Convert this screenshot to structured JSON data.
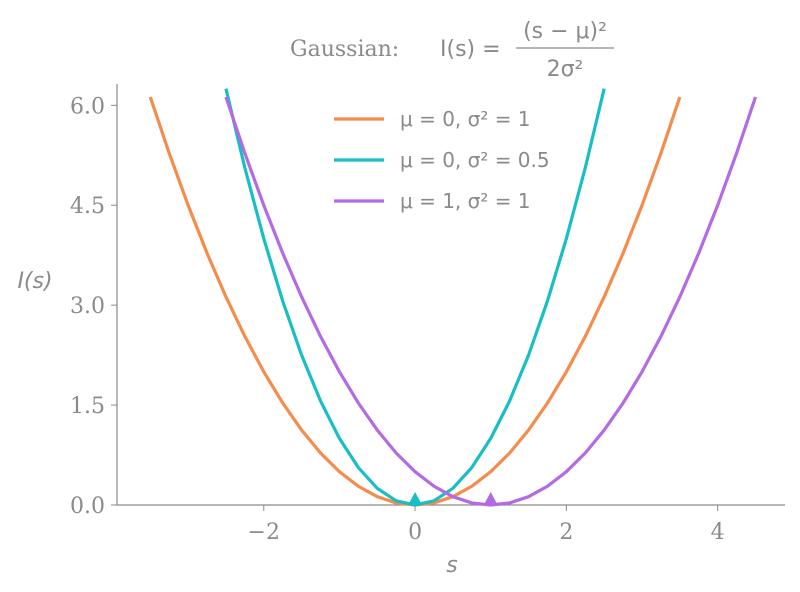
{
  "chart_data": {
    "type": "line",
    "title": "Gaussian:",
    "formula": {
      "lhs": "I(s) =",
      "numerator": "(s − μ)²",
      "denominator": "2σ²"
    },
    "xlabel": "s",
    "ylabel": "I(s)",
    "xlim": [
      -3.94,
      4.89
    ],
    "ylim": [
      0,
      6.32
    ],
    "xticks": [
      {
        "value": -2,
        "label": "−2"
      },
      0,
      2,
      4
    ],
    "yticks": [
      {
        "value": 0,
        "label": "0.0"
      },
      {
        "value": 1.5,
        "label": "1.5"
      },
      {
        "value": 3,
        "label": "3.0"
      },
      {
        "value": 4.5,
        "label": "4.5"
      },
      {
        "value": 6,
        "label": "6.0"
      }
    ],
    "legend": "upper center",
    "series": [
      {
        "name": "μ = 0,  σ² = 1",
        "color": "#f58b4c",
        "x": [
          -3.5,
          -3.25,
          -3,
          -2.75,
          -2.5,
          -2.25,
          -2,
          -1.75,
          -1.5,
          -1.25,
          -1,
          -0.75,
          -0.5,
          -0.25,
          0,
          0.25,
          0.5,
          0.75,
          1,
          1.25,
          1.5,
          1.75,
          2,
          2.25,
          2.5,
          2.75,
          3,
          3.25,
          3.5
        ],
        "values": [
          6.125,
          5.28125,
          4.5,
          3.78125,
          3.125,
          2.53125,
          2,
          1.53125,
          1.125,
          0.78125,
          0.5,
          0.28125,
          0.125,
          0.03125,
          0,
          0.03125,
          0.125,
          0.28125,
          0.5,
          0.78125,
          1.125,
          1.53125,
          2,
          2.53125,
          3.125,
          3.78125,
          4.5,
          5.28125,
          6.125
        ]
      },
      {
        "name": "μ = 0,  σ² = 0.5",
        "color": "#17bfc4",
        "x": [
          -2.5,
          -2.25,
          -2,
          -1.75,
          -1.5,
          -1.25,
          -1,
          -0.75,
          -0.5,
          -0.25,
          0,
          0.25,
          0.5,
          0.75,
          1,
          1.25,
          1.5,
          1.75,
          2,
          2.25,
          2.5
        ],
        "values": [
          6.25,
          5.0625,
          4,
          3.0625,
          2.25,
          1.5625,
          1,
          0.5625,
          0.25,
          0.0625,
          0,
          0.0625,
          0.25,
          0.5625,
          1,
          1.5625,
          2.25,
          3.0625,
          4,
          5.0625,
          6.25
        ],
        "minimum": {
          "x": 0,
          "y": 0
        }
      },
      {
        "name": "μ = 1,  σ² = 1",
        "color": "#b36ae2",
        "x": [
          -2.5,
          -2.25,
          -2,
          -1.75,
          -1.5,
          -1.25,
          -1,
          -0.75,
          -0.5,
          -0.25,
          0,
          0.25,
          0.5,
          0.75,
          1,
          1.25,
          1.5,
          1.75,
          2,
          2.25,
          2.5,
          2.75,
          3,
          3.25,
          3.5,
          3.75,
          4,
          4.25,
          4.5
        ],
        "values": [
          6.125,
          5.28125,
          4.5,
          3.78125,
          3.125,
          2.53125,
          2,
          1.53125,
          1.125,
          0.78125,
          0.5,
          0.28125,
          0.125,
          0.03125,
          0,
          0.03125,
          0.125,
          0.28125,
          0.5,
          0.78125,
          1.125,
          1.53125,
          2,
          2.53125,
          3.125,
          3.78125,
          4.5,
          5.28125,
          6.125
        ],
        "minimum": {
          "x": 1,
          "y": 0
        }
      }
    ]
  }
}
